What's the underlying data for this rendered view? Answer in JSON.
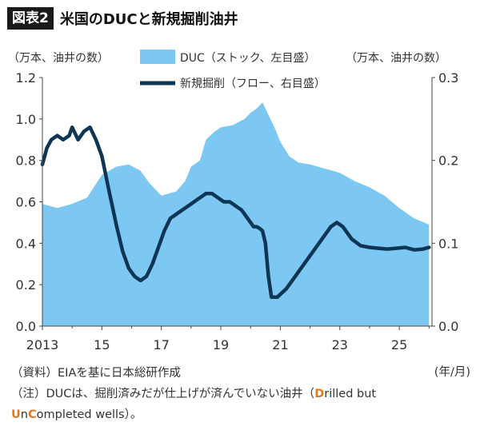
{
  "header": {
    "tag": "図表2",
    "title": "米国のDUCと新規掘削油井"
  },
  "colors": {
    "duc_fill": "#7cc8f2",
    "drilling_line": "#0f3554",
    "accent": "#e07b1c"
  },
  "chart_data": {
    "type": "area",
    "left_axis": {
      "unit": "（万本、油井の数）",
      "ylim": [
        0,
        1.2
      ],
      "ticks": [
        "0.0",
        "0.2",
        "0.4",
        "0.6",
        "0.8",
        "1.0",
        "1.2"
      ]
    },
    "right_axis": {
      "unit": "（万本、油井の数）",
      "ylim": [
        0,
        0.3
      ],
      "ticks": [
        "0.0",
        "0.1",
        "0.2",
        "0.3"
      ]
    },
    "x_axis": {
      "xlim": [
        2013,
        2026.1
      ],
      "tick_years": [
        2013,
        2015,
        2017,
        2019,
        2021,
        2023,
        2025
      ],
      "tick_labels": [
        "2013",
        "15",
        "17",
        "19",
        "21",
        "23",
        "25"
      ],
      "unit": "(年/月)"
    },
    "legend": [
      {
        "label": "DUC（ストック、左目盛）",
        "kind": "area"
      },
      {
        "label": "新規掘削（フロー、右目盛）",
        "kind": "line"
      }
    ],
    "grid": false,
    "series": [
      {
        "name": "DUC（ストック、左目盛）",
        "axis": "left",
        "type": "area",
        "x": [
          2013.0,
          2013.5,
          2014.0,
          2014.5,
          2015.0,
          2015.5,
          2015.9,
          2016.3,
          2016.6,
          2017.0,
          2017.5,
          2017.8,
          2018.0,
          2018.3,
          2018.5,
          2018.8,
          2019.0,
          2019.4,
          2019.8,
          2020.0,
          2020.2,
          2020.4,
          2020.6,
          2020.8,
          2021.0,
          2021.3,
          2021.6,
          2022.0,
          2022.5,
          2023.0,
          2023.5,
          2024.0,
          2024.5,
          2025.0,
          2025.5,
          2026.0
        ],
        "values": [
          0.59,
          0.57,
          0.59,
          0.62,
          0.73,
          0.77,
          0.78,
          0.75,
          0.69,
          0.63,
          0.65,
          0.7,
          0.77,
          0.8,
          0.9,
          0.94,
          0.96,
          0.97,
          1.0,
          1.03,
          1.05,
          1.08,
          1.02,
          0.96,
          0.89,
          0.82,
          0.79,
          0.78,
          0.76,
          0.74,
          0.7,
          0.67,
          0.63,
          0.57,
          0.52,
          0.49
        ]
      },
      {
        "name": "新規掘削（フロー、右目盛）",
        "axis": "right",
        "type": "line",
        "x": [
          2013.0,
          2013.15,
          2013.3,
          2013.5,
          2013.7,
          2013.9,
          2014.0,
          2014.2,
          2014.4,
          2014.6,
          2014.8,
          2015.0,
          2015.2,
          2015.5,
          2015.7,
          2015.9,
          2016.1,
          2016.3,
          2016.5,
          2016.7,
          2016.9,
          2017.1,
          2017.3,
          2017.5,
          2017.7,
          2017.9,
          2018.1,
          2018.3,
          2018.5,
          2018.7,
          2018.9,
          2019.1,
          2019.3,
          2019.5,
          2019.7,
          2019.9,
          2020.0,
          2020.1,
          2020.2,
          2020.3,
          2020.4,
          2020.5,
          2020.6,
          2020.7,
          2020.9,
          2021.2,
          2021.5,
          2021.8,
          2022.1,
          2022.4,
          2022.7,
          2022.9,
          2023.1,
          2023.4,
          2023.7,
          2024.0,
          2024.3,
          2024.6,
          2024.9,
          2025.2,
          2025.5,
          2025.8,
          2026.0
        ],
        "values": [
          0.195,
          0.215,
          0.225,
          0.23,
          0.225,
          0.23,
          0.24,
          0.225,
          0.235,
          0.24,
          0.225,
          0.205,
          0.17,
          0.12,
          0.09,
          0.07,
          0.06,
          0.055,
          0.06,
          0.075,
          0.095,
          0.115,
          0.13,
          0.135,
          0.14,
          0.145,
          0.15,
          0.155,
          0.16,
          0.16,
          0.155,
          0.15,
          0.15,
          0.145,
          0.14,
          0.13,
          0.125,
          0.12,
          0.12,
          0.118,
          0.115,
          0.1,
          0.06,
          0.035,
          0.035,
          0.045,
          0.06,
          0.075,
          0.09,
          0.105,
          0.12,
          0.125,
          0.12,
          0.105,
          0.097,
          0.095,
          0.094,
          0.093,
          0.094,
          0.095,
          0.092,
          0.093,
          0.095
        ]
      }
    ]
  },
  "notes": {
    "source": "（資料）EIAを基に日本総研作成",
    "note_line1": "（注）DUCは、掘削済みだが仕上げが済んでいない油井（",
    "note_d": "D",
    "note_rilled": "rilled but",
    "note_u": "U",
    "note_n": "n",
    "note_c": "C",
    "note_ompleted": "ompleted wells）。"
  }
}
